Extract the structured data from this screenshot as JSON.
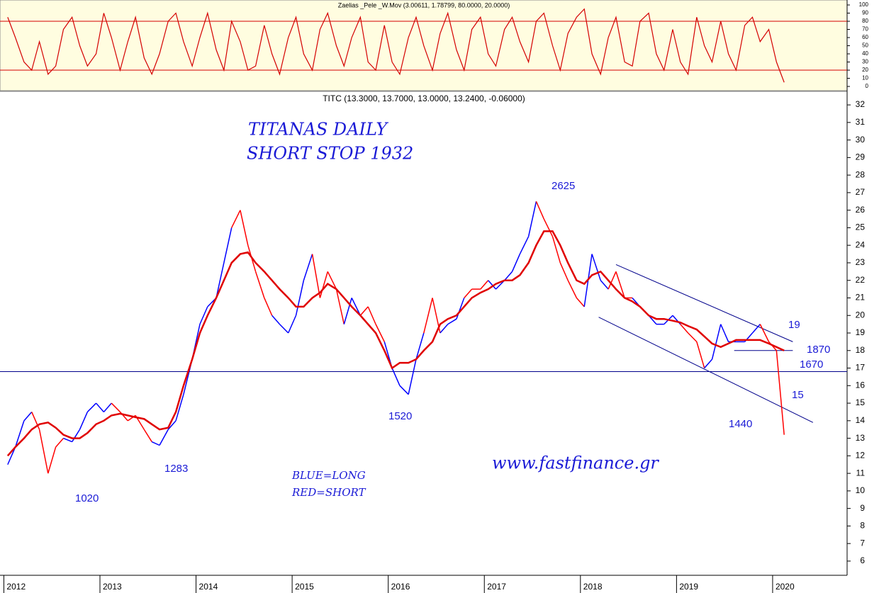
{
  "chart_data": [
    {
      "type": "line",
      "title": "Zaelias _Pele _W.Mov (3.00611, 1.78799, 80.0000, 20.0000)",
      "x": [
        2012.04,
        2012.12,
        2012.21,
        2012.29,
        2012.37,
        2012.46,
        2012.54,
        2012.62,
        2012.71,
        2012.79,
        2012.87,
        2012.96,
        2013.04,
        2013.12,
        2013.21,
        2013.29,
        2013.37,
        2013.46,
        2013.54,
        2013.62,
        2013.71,
        2013.79,
        2013.87,
        2013.96,
        2014.04,
        2014.12,
        2014.21,
        2014.29,
        2014.37,
        2014.46,
        2014.54,
        2014.62,
        2014.71,
        2014.79,
        2014.87,
        2014.96,
        2015.04,
        2015.12,
        2015.21,
        2015.29,
        2015.37,
        2015.46,
        2015.54,
        2015.62,
        2015.71,
        2015.79,
        2015.87,
        2015.96,
        2016.04,
        2016.12,
        2016.21,
        2016.29,
        2016.37,
        2016.46,
        2016.54,
        2016.62,
        2016.71,
        2016.79,
        2016.87,
        2016.96,
        2017.04,
        2017.12,
        2017.21,
        2017.29,
        2017.37,
        2017.46,
        2017.54,
        2017.62,
        2017.71,
        2017.79,
        2017.87,
        2017.96,
        2018.04,
        2018.12,
        2018.21,
        2018.29,
        2018.37,
        2018.46,
        2018.54,
        2018.62,
        2018.71,
        2018.79,
        2018.87,
        2018.96,
        2019.04,
        2019.12,
        2019.21,
        2019.29,
        2019.37,
        2019.46,
        2019.54,
        2019.62,
        2019.71,
        2019.79,
        2019.87,
        2019.96,
        2020.04,
        2020.12
      ],
      "series": [
        {
          "color": "#d40000",
          "values": [
            85,
            60,
            30,
            20,
            55,
            15,
            25,
            70,
            85,
            50,
            25,
            40,
            90,
            60,
            20,
            55,
            85,
            35,
            15,
            40,
            80,
            90,
            55,
            25,
            60,
            90,
            45,
            20,
            80,
            55,
            20,
            25,
            75,
            40,
            15,
            60,
            85,
            40,
            20,
            70,
            90,
            50,
            25,
            60,
            85,
            30,
            20,
            75,
            30,
            15,
            60,
            85,
            50,
            20,
            65,
            90,
            45,
            20,
            70,
            85,
            40,
            25,
            70,
            85,
            55,
            30,
            80,
            90,
            50,
            20,
            65,
            85,
            95,
            40,
            15,
            60,
            85,
            30,
            25,
            80,
            90,
            40,
            20,
            70,
            30,
            15,
            85,
            50,
            30,
            80,
            40,
            20,
            75,
            85,
            55,
            70,
            30,
            5
          ]
        }
      ],
      "hlines": [
        80,
        20
      ],
      "hline_color": "#d40000",
      "background": "#fffde0",
      "xlim": [
        2011.96,
        2020.775
      ],
      "ylim": [
        -5.2,
        106.1
      ],
      "yticks": [
        0,
        10,
        20,
        30,
        40,
        50,
        60,
        70,
        80,
        90,
        100
      ]
    },
    {
      "type": "line",
      "title": "TITC (13.3000, 13.7000, 13.0000, 13.2400, -0.06000)",
      "x": [
        2012.04,
        2012.12,
        2012.21,
        2012.29,
        2012.37,
        2012.46,
        2012.54,
        2012.62,
        2012.71,
        2012.79,
        2012.87,
        2012.96,
        2013.04,
        2013.12,
        2013.21,
        2013.29,
        2013.37,
        2013.46,
        2013.54,
        2013.62,
        2013.71,
        2013.79,
        2013.87,
        2013.96,
        2014.04,
        2014.12,
        2014.21,
        2014.29,
        2014.37,
        2014.46,
        2014.54,
        2014.62,
        2014.71,
        2014.79,
        2014.87,
        2014.96,
        2015.04,
        2015.12,
        2015.21,
        2015.29,
        2015.37,
        2015.46,
        2015.54,
        2015.62,
        2015.71,
        2015.79,
        2015.87,
        2015.96,
        2016.04,
        2016.12,
        2016.21,
        2016.29,
        2016.37,
        2016.46,
        2016.54,
        2016.62,
        2016.71,
        2016.79,
        2016.87,
        2016.96,
        2017.04,
        2017.12,
        2017.21,
        2017.29,
        2017.37,
        2017.46,
        2017.54,
        2017.62,
        2017.71,
        2017.79,
        2017.87,
        2017.96,
        2018.04,
        2018.12,
        2018.21,
        2018.29,
        2018.37,
        2018.46,
        2018.54,
        2018.62,
        2018.71,
        2018.79,
        2018.87,
        2018.96,
        2019.04,
        2019.12,
        2019.21,
        2019.29,
        2019.37,
        2019.46,
        2019.54,
        2019.62,
        2019.71,
        2019.79,
        2019.87,
        2019.96,
        2020.04,
        2020.12
      ],
      "series": [
        {
          "values": [
            11.5,
            12.5,
            14,
            14.5,
            13.5,
            11,
            12.5,
            13,
            12.8,
            13.5,
            14.5,
            15,
            14.5,
            15,
            14.5,
            14,
            14.3,
            13.5,
            12.8,
            12.6,
            13.5,
            14,
            15.5,
            17.5,
            19.5,
            20.5,
            21,
            23,
            25,
            26,
            24,
            22.5,
            21,
            20,
            19.5,
            19,
            20,
            22,
            23.5,
            21,
            22.5,
            21.5,
            19.5,
            21,
            20,
            20.5,
            19.5,
            18.5,
            17,
            16,
            15.5,
            17.5,
            19,
            21,
            19,
            19.5,
            19.8,
            21,
            21.5,
            21.5,
            22,
            21.5,
            22,
            22.5,
            23.5,
            24.5,
            26.5,
            25.5,
            24.5,
            23,
            22,
            21,
            20.5,
            23.5,
            22,
            21.5,
            22.5,
            21,
            21,
            20.5,
            20,
            19.5,
            19.5,
            20,
            19.5,
            19,
            18.5,
            17,
            17.5,
            19.5,
            18.5,
            18.5,
            18.5,
            19,
            19.5,
            18.5,
            18,
            13.2
          ],
          "colors": [
            "#0000ff",
            "#0000ff",
            "#0000ff",
            "#0000ff",
            "#ff0000",
            "#ff0000",
            "#ff0000",
            "#ff0000",
            "#0000ff",
            "#0000ff",
            "#0000ff",
            "#0000ff",
            "#0000ff",
            "#0000ff",
            "#ff0000",
            "#ff0000",
            "#ff0000",
            "#ff0000",
            "#ff0000",
            "#0000ff",
            "#0000ff",
            "#0000ff",
            "#0000ff",
            "#0000ff",
            "#0000ff",
            "#0000ff",
            "#0000ff",
            "#0000ff",
            "#0000ff",
            "#ff0000",
            "#ff0000",
            "#ff0000",
            "#ff0000",
            "#ff0000",
            "#0000ff",
            "#0000ff",
            "#0000ff",
            "#0000ff",
            "#0000ff",
            "#ff0000",
            "#ff0000",
            "#ff0000",
            "#ff0000",
            "#0000ff",
            "#0000ff",
            "#ff0000",
            "#ff0000",
            "#ff0000",
            "#0000ff",
            "#0000ff",
            "#0000ff",
            "#0000ff",
            "#0000ff",
            "#ff0000",
            "#ff0000",
            "#0000ff",
            "#0000ff",
            "#0000ff",
            "#ff0000",
            "#ff0000",
            "#ff0000",
            "#0000ff",
            "#0000ff",
            "#0000ff",
            "#0000ff",
            "#0000ff",
            "#0000ff",
            "#ff0000",
            "#ff0000",
            "#ff0000",
            "#ff0000",
            "#ff0000",
            "#ff0000",
            "#0000ff",
            "#0000ff",
            "#0000ff",
            "#ff0000",
            "#ff0000",
            "#ff0000",
            "#0000ff",
            "#0000ff",
            "#0000ff",
            "#0000ff",
            "#0000ff",
            "#0000ff",
            "#ff0000",
            "#ff0000",
            "#ff0000",
            "#0000ff",
            "#0000ff",
            "#0000ff",
            "#0000ff",
            "#0000ff",
            "#0000ff",
            "#0000ff",
            "#ff0000",
            "#ff0000",
            "#ff0000"
          ]
        },
        {
          "color": "#e00000",
          "values": [
            12,
            12.5,
            13,
            13.5,
            13.8,
            13.9,
            13.6,
            13.2,
            13,
            13,
            13.3,
            13.8,
            14,
            14.3,
            14.4,
            14.3,
            14.2,
            14.1,
            13.8,
            13.5,
            13.6,
            14.5,
            16,
            17.5,
            19,
            20,
            21,
            22,
            23,
            23.5,
            23.6,
            23,
            22.5,
            22,
            21.5,
            21,
            20.5,
            20.5,
            21,
            21.3,
            21.8,
            21.5,
            21,
            20.5,
            20,
            19.5,
            19,
            18,
            17,
            17.3,
            17.3,
            17.5,
            18,
            18.5,
            19.5,
            19.8,
            20,
            20.5,
            21,
            21.3,
            21.5,
            21.8,
            22,
            22,
            22.3,
            23,
            24,
            24.8,
            24.8,
            24,
            23,
            22,
            21.8,
            22.3,
            22.5,
            22,
            21.5,
            21,
            20.8,
            20.5,
            20,
            19.8,
            19.8,
            19.7,
            19.6,
            19.4,
            19.2,
            18.8,
            18.4,
            18.2,
            18.4,
            18.6,
            18.6,
            18.6,
            18.6,
            18.4,
            18.2,
            18
          ]
        }
      ],
      "lines": [
        {
          "x": [
            2018.37,
            2020.21
          ],
          "y": [
            22.9,
            18.5
          ]
        },
        {
          "x": [
            2018.19,
            2020.42
          ],
          "y": [
            19.9,
            13.9
          ]
        },
        {
          "x": [
            2019.6,
            2020.21
          ],
          "y": [
            18,
            18
          ]
        }
      ],
      "hline": 16.8,
      "line_color": "#00008b",
      "annotations": [
        "TITANAS DAILY",
        "SHORT STOP 1932",
        "2625",
        "1520",
        "1283",
        "1020",
        "1440",
        "19",
        "1870",
        "1670",
        "15",
        "www.fastfinance.gr",
        "BLUE=LONG",
        "RED=SHORT"
      ],
      "xlim": [
        2011.96,
        2020.775
      ],
      "ylim": [
        5.19,
        32.73
      ],
      "xticks": [
        2012,
        2013,
        2014,
        2015,
        2016,
        2017,
        2018,
        2019,
        2020
      ],
      "yticks": [
        6,
        7,
        8,
        9,
        10,
        11,
        12,
        13,
        14,
        15,
        16,
        17,
        18,
        19,
        20,
        21,
        22,
        23,
        24,
        25,
        26,
        27,
        28,
        29,
        30,
        31,
        32
      ]
    }
  ]
}
